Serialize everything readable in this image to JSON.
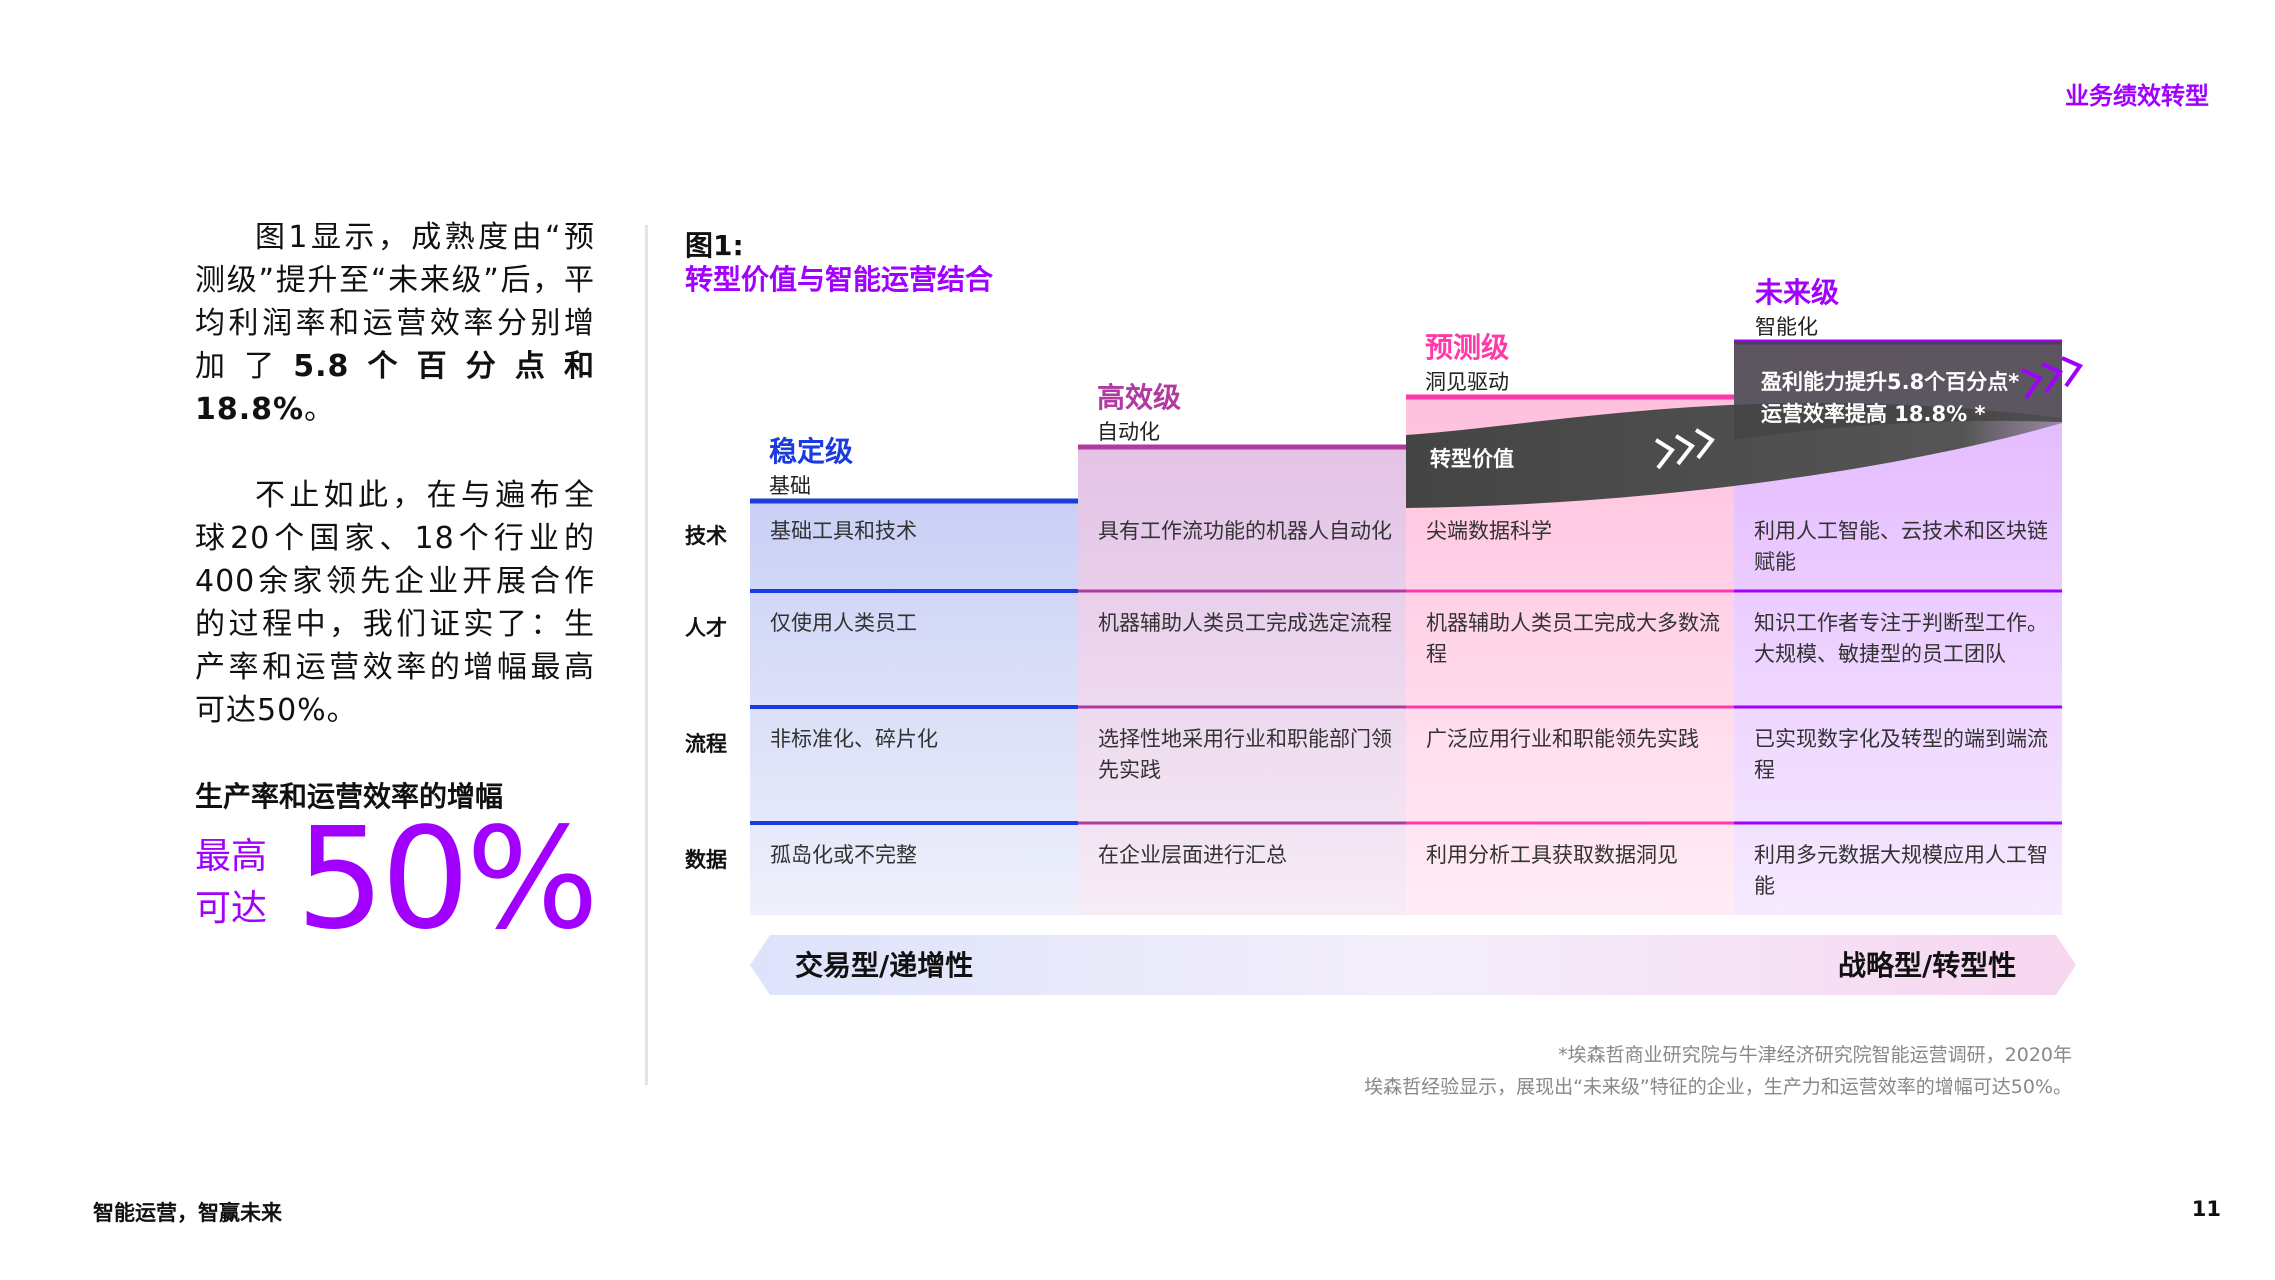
{
  "header": {
    "section": "业务绩效转型"
  },
  "left": {
    "para1_a": "图1显示，成熟度由“预测级”提升至“未来级”后，平均利润率和运营效率分别增加了",
    "para1_b": "5.8个百分点和18.8%",
    "para1_c": "。",
    "para2": "不止如此，在与遍布全球20个国家、18个行业的400余家领先企业开展合作的过程中，我们证实了：生产率和运营效率的增幅最高可达50%。",
    "stat_label": "生产率和运营效率的增幅",
    "stat_prefix": "最高可达",
    "stat_value": "50%"
  },
  "figure": {
    "number": "图1:",
    "title": "转型价值与智能运营结合",
    "levels": [
      {
        "name": "稳定级",
        "sub": "基础",
        "color": "#1a3be0"
      },
      {
        "name": "高效级",
        "sub": "自动化",
        "color": "#b03aa0"
      },
      {
        "name": "预测级",
        "sub": "洞见驱动",
        "color": "#ff3aa8"
      },
      {
        "name": "未来级",
        "sub": "智能化",
        "color": "#a100ff"
      }
    ],
    "rows": [
      {
        "label": "技术",
        "cells": [
          "基础工具和技术",
          "具有工作流功能的机器人自动化",
          "尖端数据科学",
          "利用人工智能、云技术和区块链赋能"
        ]
      },
      {
        "label": "人才",
        "cells": [
          "仅使用人类员工",
          "机器辅助人类员工完成选定流程",
          "机器辅助人类员工完成大多数流程",
          "知识工作者专注于判断型工作。大规模、敏捷型的员工团队"
        ]
      },
      {
        "label": "流程",
        "cells": [
          "非标准化、碎片化",
          "选择性地采用行业和职能部门领先实践",
          "广泛应用行业和职能领先实践",
          "已实现数字化及转型的端到端流程"
        ]
      },
      {
        "label": "数据",
        "cells": [
          "孤岛化或不完整",
          "在企业层面进行汇总",
          "利用分析工具获取数据洞见",
          "利用多元数据大规模应用人工智能"
        ]
      }
    ],
    "ribbon_label": "转型价值",
    "callout_line1": "盈利能力提升5.8个百分点*",
    "callout_line2": "运营效率提高 18.8% *",
    "axis_left": "交易型/递增性",
    "axis_right": "战略型/转型性"
  },
  "source": {
    "line1": "*埃森哲商业研究院与牛津经济研究院智能运营调研，2020年",
    "line2": "埃森哲经验显示，展现出“未来级”特征的企业，生产力和运营效率的增幅可达50%。"
  },
  "footer": {
    "title": "智能运营，智赢未来",
    "page": "11"
  }
}
